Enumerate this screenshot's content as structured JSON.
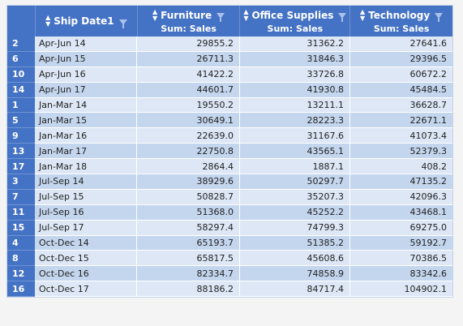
{
  "pivot": {
    "headers": [
      {
        "title": "Ship Date1",
        "sub": ""
      },
      {
        "title": "Furniture",
        "sub": "Sum: Sales"
      },
      {
        "title": "Office Supplies",
        "sub": "Sum: Sales"
      },
      {
        "title": "Technology",
        "sub": "Sum: Sales"
      }
    ],
    "rows": [
      {
        "n": "2",
        "date": "Apr-Jun 14",
        "furniture": "29855.2",
        "office": "31362.2",
        "tech": "27641.6"
      },
      {
        "n": "6",
        "date": "Apr-Jun 15",
        "furniture": "26711.3",
        "office": "31846.3",
        "tech": "29396.5"
      },
      {
        "n": "10",
        "date": "Apr-Jun 16",
        "furniture": "41422.2",
        "office": "33726.8",
        "tech": "60672.2"
      },
      {
        "n": "14",
        "date": "Apr-Jun 17",
        "furniture": "44601.7",
        "office": "41930.8",
        "tech": "45484.5"
      },
      {
        "n": "1",
        "date": "Jan-Mar 14",
        "furniture": "19550.2",
        "office": "13211.1",
        "tech": "36628.7"
      },
      {
        "n": "5",
        "date": "Jan-Mar 15",
        "furniture": "30649.1",
        "office": "28223.3",
        "tech": "22671.1"
      },
      {
        "n": "9",
        "date": "Jan-Mar 16",
        "furniture": "22639.0",
        "office": "31167.6",
        "tech": "41073.4"
      },
      {
        "n": "13",
        "date": "Jan-Mar 17",
        "furniture": "22750.8",
        "office": "43565.1",
        "tech": "52379.3"
      },
      {
        "n": "17",
        "date": "Jan-Mar 18",
        "furniture": "2864.4",
        "office": "1887.1",
        "tech": "408.2"
      },
      {
        "n": "3",
        "date": "Jul-Sep 14",
        "furniture": "38929.6",
        "office": "50297.7",
        "tech": "47135.2"
      },
      {
        "n": "7",
        "date": "Jul-Sep 15",
        "furniture": "50828.7",
        "office": "35207.3",
        "tech": "42096.3"
      },
      {
        "n": "11",
        "date": "Jul-Sep 16",
        "furniture": "51368.0",
        "office": "45252.2",
        "tech": "43468.1"
      },
      {
        "n": "15",
        "date": "Jul-Sep 17",
        "furniture": "58297.4",
        "office": "74799.3",
        "tech": "69275.0"
      },
      {
        "n": "4",
        "date": "Oct-Dec 14",
        "furniture": "65193.7",
        "office": "51385.2",
        "tech": "59192.7"
      },
      {
        "n": "8",
        "date": "Oct-Dec 15",
        "furniture": "65817.5",
        "office": "45608.6",
        "tech": "70386.5"
      },
      {
        "n": "12",
        "date": "Oct-Dec 16",
        "furniture": "82334.7",
        "office": "74858.9",
        "tech": "83342.6"
      },
      {
        "n": "16",
        "date": "Oct-Dec 17",
        "furniture": "88186.2",
        "office": "84717.4",
        "tech": "104902.1"
      }
    ]
  },
  "colors": {
    "header": "#4472c4",
    "row_light": "#dde7f5",
    "row_dark": "#c4d6ee"
  },
  "icons": {
    "sort": "sort-icon",
    "filter": "filter-icon"
  }
}
